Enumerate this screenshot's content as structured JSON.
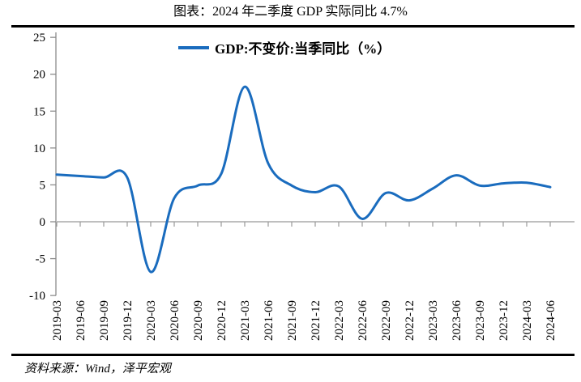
{
  "title": "图表：2024 年二季度 GDP 实际同比 4.7%",
  "source": "资料来源：Wind，泽平宏观",
  "legend": {
    "label": "GDP:不变价:当季同比（%）"
  },
  "colors": {
    "line": "#1a6cbe",
    "axis": "#8c8c8c",
    "zero_line": "#bfbfbf",
    "tick": "#9a9a9a",
    "text": "#000000",
    "divider": "#000000"
  },
  "chart_data": {
    "type": "line",
    "title": "图表：2024 年二季度 GDP 实际同比 4.7%",
    "x": [
      "2019-03",
      "2019-06",
      "2019-09",
      "2019-12",
      "2020-03",
      "2020-06",
      "2020-09",
      "2020-12",
      "2021-03",
      "2021-06",
      "2021-09",
      "2021-12",
      "2022-03",
      "2022-06",
      "2022-09",
      "2022-12",
      "2023-03",
      "2023-06",
      "2023-09",
      "2023-12",
      "2024-03",
      "2024-06"
    ],
    "series": [
      {
        "name": "GDP:不变价:当季同比（%）",
        "values": [
          6.4,
          6.2,
          6.0,
          6.0,
          -6.8,
          3.2,
          4.9,
          6.5,
          18.3,
          7.9,
          4.9,
          4.0,
          4.8,
          0.4,
          3.9,
          2.9,
          4.5,
          6.3,
          4.9,
          5.2,
          5.3,
          4.7
        ]
      }
    ],
    "xlabel": "",
    "ylabel": "",
    "ylim": [
      -10,
      25
    ],
    "yticks": [
      25,
      20,
      15,
      10,
      5,
      0,
      -5,
      -10
    ],
    "grid": false,
    "zero_baseline": true,
    "smooth": true,
    "legend_position": "top-center"
  }
}
